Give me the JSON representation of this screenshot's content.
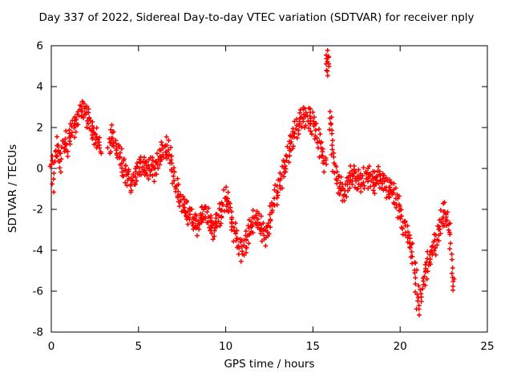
{
  "chart_data": {
    "type": "scatter",
    "title": "Day 337 of 2022, Sidereal Day-to-day VTEC variation (SDTVAR) for receiver nply",
    "xlabel": "GPS time / hours",
    "ylabel": "SDTVAR / TECUs",
    "xlim": [
      0,
      25
    ],
    "ylim": [
      -8,
      6
    ],
    "xticks": [
      0,
      5,
      10,
      15,
      20,
      25
    ],
    "yticks": [
      -8,
      -6,
      -4,
      -2,
      0,
      2,
      4,
      6
    ],
    "grid": false,
    "legend": "none",
    "marker": "plus",
    "marker_color": "#ff0000",
    "border_color": "#000000",
    "scatter_spread": 0.45,
    "series": [
      {
        "name": "SDTVAR",
        "points": [
          [
            0.0,
            0.3
          ],
          [
            0.1,
            -0.6
          ],
          [
            0.2,
            0.5
          ],
          [
            0.3,
            1.0
          ],
          [
            0.4,
            0.7
          ],
          [
            0.5,
            0.2
          ],
          [
            0.6,
            0.9
          ],
          [
            0.7,
            1.1
          ],
          [
            0.8,
            1.3
          ],
          [
            0.9,
            1.0
          ],
          [
            1.0,
            1.4
          ],
          [
            1.1,
            1.7
          ],
          [
            1.2,
            1.9
          ],
          [
            1.3,
            2.1
          ],
          [
            1.4,
            2.3
          ],
          [
            1.5,
            2.5
          ],
          [
            1.6,
            2.7
          ],
          [
            1.7,
            2.9
          ],
          [
            1.8,
            3.0
          ],
          [
            1.9,
            2.8
          ],
          [
            2.0,
            2.5
          ],
          [
            2.1,
            2.6
          ],
          [
            2.2,
            2.4
          ],
          [
            2.3,
            2.0
          ],
          [
            2.4,
            1.7
          ],
          [
            2.5,
            1.5
          ],
          [
            2.6,
            1.4
          ],
          [
            2.7,
            1.2
          ],
          [
            2.8,
            1.0
          ],
          [
            3.3,
            1.1
          ],
          [
            3.4,
            1.4
          ],
          [
            3.5,
            1.6
          ],
          [
            3.6,
            1.4
          ],
          [
            3.7,
            1.1
          ],
          [
            3.8,
            0.8
          ],
          [
            3.9,
            0.6
          ],
          [
            4.0,
            0.4
          ],
          [
            4.1,
            0.2
          ],
          [
            4.2,
            0.0
          ],
          [
            4.3,
            -0.2
          ],
          [
            4.4,
            -0.4
          ],
          [
            4.5,
            -0.6
          ],
          [
            4.6,
            -0.7
          ],
          [
            4.7,
            -0.5
          ],
          [
            4.8,
            -0.3
          ],
          [
            4.9,
            -0.1
          ],
          [
            5.0,
            0.0
          ],
          [
            5.1,
            0.1
          ],
          [
            5.2,
            0.2
          ],
          [
            5.3,
            0.1
          ],
          [
            5.4,
            0.0
          ],
          [
            5.5,
            -0.1
          ],
          [
            5.6,
            0.0
          ],
          [
            5.7,
            0.1
          ],
          [
            5.8,
            0.0
          ],
          [
            5.9,
            -0.1
          ],
          [
            6.0,
            0.1
          ],
          [
            6.1,
            0.3
          ],
          [
            6.2,
            0.5
          ],
          [
            6.3,
            0.7
          ],
          [
            6.4,
            0.8
          ],
          [
            6.5,
            0.9
          ],
          [
            6.6,
            1.0
          ],
          [
            6.7,
            0.8
          ],
          [
            6.8,
            0.5
          ],
          [
            6.9,
            0.1
          ],
          [
            7.0,
            -0.3
          ],
          [
            7.1,
            -0.7
          ],
          [
            7.2,
            -1.0
          ],
          [
            7.3,
            -1.3
          ],
          [
            7.4,
            -1.5
          ],
          [
            7.5,
            -1.7
          ],
          [
            7.6,
            -1.9
          ],
          [
            7.7,
            -2.1
          ],
          [
            7.8,
            -2.2
          ],
          [
            7.9,
            -2.3
          ],
          [
            8.0,
            -2.4
          ],
          [
            8.1,
            -2.5
          ],
          [
            8.2,
            -2.6
          ],
          [
            8.3,
            -2.7
          ],
          [
            8.4,
            -2.8
          ],
          [
            8.5,
            -2.6
          ],
          [
            8.6,
            -2.4
          ],
          [
            8.7,
            -2.3
          ],
          [
            8.8,
            -2.2
          ],
          [
            8.9,
            -2.3
          ],
          [
            9.0,
            -2.5
          ],
          [
            9.1,
            -2.7
          ],
          [
            9.2,
            -2.8
          ],
          [
            9.3,
            -2.9
          ],
          [
            9.4,
            -2.8
          ],
          [
            9.5,
            -2.6
          ],
          [
            9.6,
            -2.4
          ],
          [
            9.7,
            -2.2
          ],
          [
            9.8,
            -1.9
          ],
          [
            9.9,
            -1.6
          ],
          [
            10.0,
            -1.5
          ],
          [
            10.1,
            -1.6
          ],
          [
            10.2,
            -1.9
          ],
          [
            10.3,
            -2.3
          ],
          [
            10.4,
            -2.7
          ],
          [
            10.5,
            -3.0
          ],
          [
            10.6,
            -3.3
          ],
          [
            10.7,
            -3.6
          ],
          [
            10.8,
            -3.8
          ],
          [
            10.9,
            -4.0
          ],
          [
            11.0,
            -3.9
          ],
          [
            11.1,
            -3.7
          ],
          [
            11.2,
            -3.4
          ],
          [
            11.3,
            -3.1
          ],
          [
            11.4,
            -2.9
          ],
          [
            11.5,
            -2.7
          ],
          [
            11.6,
            -2.6
          ],
          [
            11.7,
            -2.5
          ],
          [
            11.8,
            -2.5
          ],
          [
            11.9,
            -2.6
          ],
          [
            12.0,
            -2.8
          ],
          [
            12.1,
            -3.0
          ],
          [
            12.2,
            -3.1
          ],
          [
            12.3,
            -3.2
          ],
          [
            12.4,
            -3.0
          ],
          [
            12.5,
            -2.7
          ],
          [
            12.6,
            -2.3
          ],
          [
            12.7,
            -1.9
          ],
          [
            12.8,
            -1.6
          ],
          [
            12.9,
            -1.3
          ],
          [
            13.0,
            -1.0
          ],
          [
            13.1,
            -0.7
          ],
          [
            13.2,
            -0.4
          ],
          [
            13.3,
            -0.1
          ],
          [
            13.4,
            0.2
          ],
          [
            13.5,
            0.5
          ],
          [
            13.6,
            0.8
          ],
          [
            13.7,
            1.1
          ],
          [
            13.8,
            1.4
          ],
          [
            13.9,
            1.6
          ],
          [
            14.0,
            1.8
          ],
          [
            14.1,
            2.0
          ],
          [
            14.2,
            2.2
          ],
          [
            14.3,
            2.3
          ],
          [
            14.4,
            2.4
          ],
          [
            14.5,
            2.5
          ],
          [
            14.6,
            2.6
          ],
          [
            14.7,
            2.5
          ],
          [
            14.8,
            2.4
          ],
          [
            14.9,
            2.3
          ],
          [
            15.0,
            2.2
          ],
          [
            15.1,
            2.0
          ],
          [
            15.2,
            1.7
          ],
          [
            15.3,
            1.4
          ],
          [
            15.4,
            1.1
          ],
          [
            15.5,
            0.8
          ],
          [
            15.6,
            0.5
          ],
          [
            15.7,
            0.3
          ],
          [
            15.8,
            5.2
          ],
          [
            15.85,
            5.3
          ],
          [
            15.9,
            5.1
          ],
          [
            16.0,
            2.3
          ],
          [
            16.05,
            2.0
          ],
          [
            16.1,
            1.0
          ],
          [
            16.2,
            0.4
          ],
          [
            16.3,
            -0.1
          ],
          [
            16.4,
            -0.5
          ],
          [
            16.5,
            -0.8
          ],
          [
            16.6,
            -1.0
          ],
          [
            16.7,
            -1.2
          ],
          [
            16.8,
            -1.1
          ],
          [
            16.9,
            -0.9
          ],
          [
            17.0,
            -0.7
          ],
          [
            17.1,
            -0.5
          ],
          [
            17.2,
            -0.4
          ],
          [
            17.3,
            -0.3
          ],
          [
            17.4,
            -0.4
          ],
          [
            17.5,
            -0.5
          ],
          [
            17.6,
            -0.6
          ],
          [
            17.7,
            -0.7
          ],
          [
            17.8,
            -0.6
          ],
          [
            17.9,
            -0.5
          ],
          [
            18.0,
            -0.4
          ],
          [
            18.1,
            -0.3
          ],
          [
            18.2,
            -0.4
          ],
          [
            18.3,
            -0.5
          ],
          [
            18.4,
            -0.6
          ],
          [
            18.5,
            -0.7
          ],
          [
            18.6,
            -0.6
          ],
          [
            18.7,
            -0.5
          ],
          [
            18.8,
            -0.4
          ],
          [
            18.9,
            -0.5
          ],
          [
            19.0,
            -0.6
          ],
          [
            19.1,
            -0.8
          ],
          [
            19.2,
            -1.0
          ],
          [
            19.3,
            -1.1
          ],
          [
            19.4,
            -1.0
          ],
          [
            19.5,
            -0.9
          ],
          [
            19.6,
            -1.1
          ],
          [
            19.7,
            -1.3
          ],
          [
            19.8,
            -1.6
          ],
          [
            19.9,
            -1.9
          ],
          [
            20.0,
            -2.2
          ],
          [
            20.1,
            -2.5
          ],
          [
            20.2,
            -2.8
          ],
          [
            20.3,
            -3.0
          ],
          [
            20.4,
            -3.2
          ],
          [
            20.5,
            -3.5
          ],
          [
            20.6,
            -3.8
          ],
          [
            20.7,
            -4.2
          ],
          [
            20.8,
            -4.8
          ],
          [
            20.9,
            -5.5
          ],
          [
            21.0,
            -6.3
          ],
          [
            21.1,
            -6.8
          ],
          [
            21.2,
            -6.2
          ],
          [
            21.3,
            -5.6
          ],
          [
            21.4,
            -5.2
          ],
          [
            21.5,
            -4.9
          ],
          [
            21.6,
            -4.6
          ],
          [
            21.7,
            -4.3
          ],
          [
            21.8,
            -4.1
          ],
          [
            21.9,
            -3.9
          ],
          [
            22.0,
            -3.7
          ],
          [
            22.1,
            -3.4
          ],
          [
            22.2,
            -3.1
          ],
          [
            22.3,
            -2.8
          ],
          [
            22.4,
            -2.5
          ],
          [
            22.5,
            -2.3
          ],
          [
            22.6,
            -2.2
          ],
          [
            22.7,
            -2.4
          ],
          [
            22.8,
            -2.9
          ],
          [
            22.9,
            -3.8
          ],
          [
            23.0,
            -5.0
          ],
          [
            23.05,
            -5.6
          ]
        ]
      }
    ]
  }
}
